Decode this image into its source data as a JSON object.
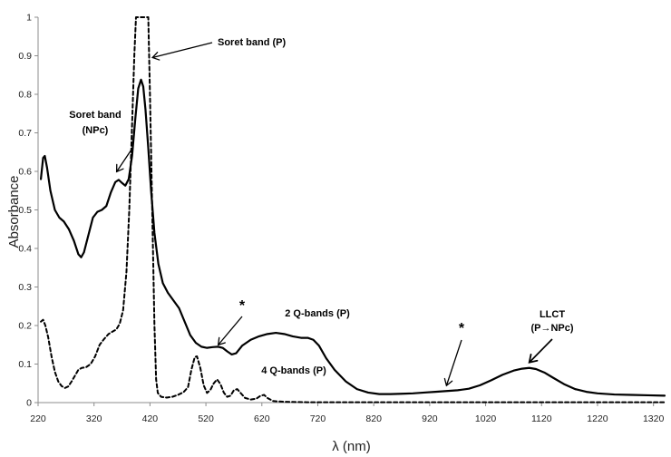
{
  "chart_data": {
    "type": "line",
    "title": "",
    "xlabel": "λ (nm)",
    "ylabel": "Absorbance",
    "xlim": [
      220,
      1340
    ],
    "ylim": [
      0,
      1
    ],
    "x_ticks": [
      "220",
      "320",
      "420",
      "520",
      "620",
      "720",
      "820",
      "920",
      "1020",
      "1120",
      "1220",
      "1320"
    ],
    "y_ticks": [
      "0",
      "0.1",
      "0.2",
      "0.3",
      "0.4",
      "0.5",
      "0.6",
      "0.7",
      "0.8",
      "0.9",
      "1"
    ],
    "grid": false,
    "legend": "none",
    "series": [
      {
        "line_style": "solid",
        "points": [
          [
            225,
            0.58
          ],
          [
            229,
            0.635
          ],
          [
            232,
            0.64
          ],
          [
            236,
            0.61
          ],
          [
            242,
            0.55
          ],
          [
            250,
            0.5
          ],
          [
            258,
            0.48
          ],
          [
            266,
            0.47
          ],
          [
            275,
            0.45
          ],
          [
            284,
            0.42
          ],
          [
            292,
            0.385
          ],
          [
            297,
            0.377
          ],
          [
            302,
            0.39
          ],
          [
            310,
            0.435
          ],
          [
            318,
            0.48
          ],
          [
            326,
            0.495
          ],
          [
            334,
            0.5
          ],
          [
            342,
            0.51
          ],
          [
            350,
            0.545
          ],
          [
            358,
            0.572
          ],
          [
            364,
            0.578
          ],
          [
            370,
            0.57
          ],
          [
            376,
            0.563
          ],
          [
            382,
            0.58
          ],
          [
            388,
            0.64
          ],
          [
            394,
            0.74
          ],
          [
            399,
            0.815
          ],
          [
            404,
            0.838
          ],
          [
            408,
            0.82
          ],
          [
            412,
            0.76
          ],
          [
            417,
            0.66
          ],
          [
            422,
            0.55
          ],
          [
            428,
            0.44
          ],
          [
            435,
            0.36
          ],
          [
            443,
            0.31
          ],
          [
            452,
            0.285
          ],
          [
            462,
            0.265
          ],
          [
            472,
            0.245
          ],
          [
            482,
            0.21
          ],
          [
            492,
            0.175
          ],
          [
            502,
            0.155
          ],
          [
            512,
            0.145
          ],
          [
            522,
            0.142
          ],
          [
            532,
            0.144
          ],
          [
            542,
            0.145
          ],
          [
            550,
            0.142
          ],
          [
            558,
            0.133
          ],
          [
            566,
            0.125
          ],
          [
            574,
            0.128
          ],
          [
            585,
            0.148
          ],
          [
            600,
            0.163
          ],
          [
            615,
            0.172
          ],
          [
            630,
            0.178
          ],
          [
            645,
            0.181
          ],
          [
            660,
            0.178
          ],
          [
            675,
            0.172
          ],
          [
            690,
            0.168
          ],
          [
            702,
            0.168
          ],
          [
            712,
            0.163
          ],
          [
            722,
            0.148
          ],
          [
            735,
            0.115
          ],
          [
            750,
            0.085
          ],
          [
            770,
            0.055
          ],
          [
            790,
            0.035
          ],
          [
            810,
            0.026
          ],
          [
            830,
            0.022
          ],
          [
            850,
            0.022
          ],
          [
            870,
            0.023
          ],
          [
            890,
            0.024
          ],
          [
            910,
            0.026
          ],
          [
            930,
            0.028
          ],
          [
            950,
            0.03
          ],
          [
            970,
            0.032
          ],
          [
            990,
            0.036
          ],
          [
            1010,
            0.045
          ],
          [
            1030,
            0.058
          ],
          [
            1050,
            0.072
          ],
          [
            1070,
            0.083
          ],
          [
            1085,
            0.088
          ],
          [
            1098,
            0.09
          ],
          [
            1110,
            0.087
          ],
          [
            1125,
            0.078
          ],
          [
            1140,
            0.065
          ],
          [
            1160,
            0.048
          ],
          [
            1180,
            0.035
          ],
          [
            1200,
            0.028
          ],
          [
            1220,
            0.024
          ],
          [
            1250,
            0.021
          ],
          [
            1280,
            0.02
          ],
          [
            1310,
            0.019
          ],
          [
            1340,
            0.018
          ]
        ]
      },
      {
        "line_style": "dashed",
        "points": [
          [
            225,
            0.21
          ],
          [
            229,
            0.215
          ],
          [
            233,
            0.2
          ],
          [
            238,
            0.17
          ],
          [
            244,
            0.12
          ],
          [
            250,
            0.08
          ],
          [
            256,
            0.055
          ],
          [
            262,
            0.043
          ],
          [
            268,
            0.038
          ],
          [
            274,
            0.042
          ],
          [
            280,
            0.055
          ],
          [
            286,
            0.07
          ],
          [
            292,
            0.085
          ],
          [
            298,
            0.09
          ],
          [
            306,
            0.092
          ],
          [
            314,
            0.1
          ],
          [
            322,
            0.12
          ],
          [
            330,
            0.15
          ],
          [
            338,
            0.165
          ],
          [
            346,
            0.178
          ],
          [
            354,
            0.185
          ],
          [
            360,
            0.19
          ],
          [
            366,
            0.205
          ],
          [
            372,
            0.24
          ],
          [
            378,
            0.34
          ],
          [
            383,
            0.5
          ],
          [
            388,
            0.72
          ],
          [
            392,
            0.9
          ],
          [
            395,
            1.0
          ],
          [
            417,
            1.0
          ],
          [
            420,
            0.8
          ],
          [
            424,
            0.5
          ],
          [
            428,
            0.2
          ],
          [
            431,
            0.06
          ],
          [
            434,
            0.025
          ],
          [
            440,
            0.015
          ],
          [
            450,
            0.013
          ],
          [
            460,
            0.015
          ],
          [
            470,
            0.02
          ],
          [
            480,
            0.027
          ],
          [
            488,
            0.04
          ],
          [
            494,
            0.085
          ],
          [
            500,
            0.118
          ],
          [
            504,
            0.12
          ],
          [
            510,
            0.09
          ],
          [
            516,
            0.045
          ],
          [
            522,
            0.025
          ],
          [
            528,
            0.033
          ],
          [
            534,
            0.05
          ],
          [
            540,
            0.06
          ],
          [
            546,
            0.048
          ],
          [
            552,
            0.026
          ],
          [
            558,
            0.015
          ],
          [
            564,
            0.018
          ],
          [
            570,
            0.032
          ],
          [
            576,
            0.035
          ],
          [
            582,
            0.025
          ],
          [
            590,
            0.012
          ],
          [
            600,
            0.008
          ],
          [
            610,
            0.01
          ],
          [
            618,
            0.018
          ],
          [
            624,
            0.02
          ],
          [
            630,
            0.012
          ],
          [
            640,
            0.004
          ],
          [
            660,
            0.002
          ],
          [
            700,
            0.001
          ],
          [
            800,
            0.001
          ],
          [
            900,
            0.001
          ],
          [
            1000,
            0.001
          ],
          [
            1100,
            0.001
          ],
          [
            1200,
            0.001
          ],
          [
            1340,
            0.001
          ]
        ]
      }
    ],
    "annotations": [
      {
        "id": "soret-npc",
        "lines": [
          "Soret band",
          "(NPc)"
        ],
        "target": [
          362,
          0.578
        ]
      },
      {
        "id": "soret-p",
        "lines": [
          "Soret band (P)"
        ],
        "target": [
          418,
          0.9
        ]
      },
      {
        "id": "q-bands-2",
        "lines": [
          "2 Q-bands (P)"
        ]
      },
      {
        "id": "q-bands-4",
        "lines": [
          "4 Q-bands (P)"
        ]
      },
      {
        "id": "llct",
        "lines": [
          "LLCT",
          "(P→NPc)"
        ],
        "target": [
          1098,
          0.09
        ]
      },
      {
        "id": "asterisk-1",
        "lines": [
          "*"
        ],
        "target": [
          542,
          0.145
        ]
      },
      {
        "id": "asterisk-2",
        "lines": [
          "*"
        ],
        "target": [
          950,
          0.03
        ]
      }
    ]
  }
}
